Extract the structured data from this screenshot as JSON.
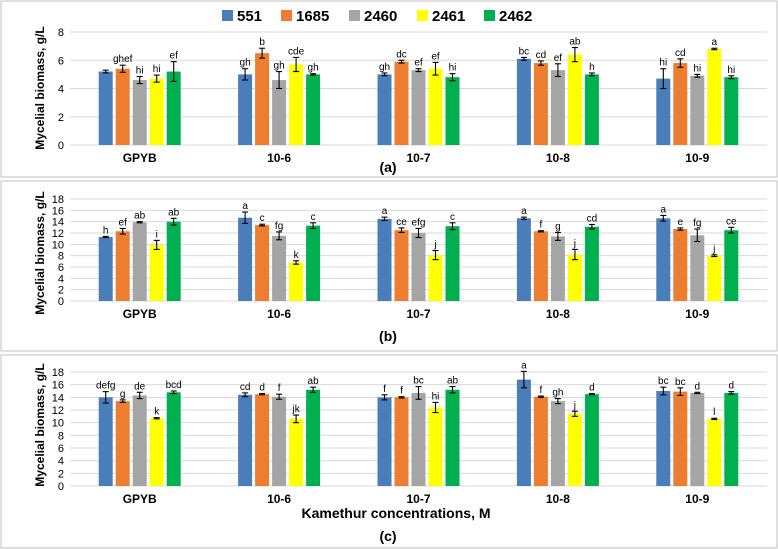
{
  "legend": {
    "series": [
      {
        "name": "551",
        "color": "#4a7ebb"
      },
      {
        "name": "1685",
        "color": "#ed7d31"
      },
      {
        "name": "2460",
        "color": "#a5a5a5"
      },
      {
        "name": "2461",
        "color": "#ffff00"
      },
      {
        "name": "2462",
        "color": "#00b050"
      }
    ]
  },
  "chart_data": [
    {
      "type": "bar",
      "panel_label": "(a)",
      "ylabel": "Mycelial biomass, g/L",
      "xlabel": "",
      "ylim": [
        0,
        8
      ],
      "yticks": [
        0,
        2,
        4,
        6,
        8
      ],
      "categories": [
        "GPYB",
        "10-6",
        "10-7",
        "10-8",
        "10-9"
      ],
      "series": [
        {
          "name": "551",
          "values": [
            5.2,
            5.0,
            5.0,
            6.1,
            4.7
          ],
          "errors": [
            0.1,
            0.4,
            0.1,
            0.1,
            0.7
          ],
          "labels": [
            "",
            "gh",
            "gh",
            "bc",
            "hi"
          ]
        },
        {
          "name": "1685",
          "values": [
            5.4,
            6.5,
            5.9,
            5.8,
            5.8
          ],
          "errors": [
            0.25,
            0.35,
            0.1,
            0.15,
            0.3
          ],
          "labels": [
            "ghef",
            "b",
            "dc",
            "cd",
            "cd"
          ]
        },
        {
          "name": "2460",
          "values": [
            4.6,
            4.6,
            5.3,
            5.3,
            4.9
          ],
          "errors": [
            0.25,
            0.6,
            0.1,
            0.45,
            0.1
          ],
          "labels": [
            "hi",
            "gh",
            "ef",
            "ef",
            "hi"
          ]
        },
        {
          "name": "2461",
          "values": [
            4.7,
            5.7,
            5.4,
            6.4,
            6.8
          ],
          "errors": [
            0.25,
            0.5,
            0.45,
            0.5,
            0.05
          ],
          "labels": [
            "hi",
            "cde",
            "ef",
            "ab",
            "a"
          ]
        },
        {
          "name": "2462",
          "values": [
            5.2,
            5.0,
            4.8,
            5.0,
            4.8
          ],
          "errors": [
            0.7,
            0.05,
            0.25,
            0.1,
            0.1
          ],
          "labels": [
            "ef",
            "gh",
            "hi",
            "h",
            "hi"
          ]
        }
      ]
    },
    {
      "type": "bar",
      "panel_label": "(b)",
      "ylabel": "Mycelial biomass, g/L",
      "xlabel": "",
      "ylim": [
        0,
        18
      ],
      "yticks": [
        0,
        2,
        4,
        6,
        8,
        10,
        12,
        14,
        16,
        18
      ],
      "categories": [
        "GPYB",
        "10-6",
        "10-7",
        "10-8",
        "10-9"
      ],
      "series": [
        {
          "name": "551",
          "values": [
            11.3,
            14.7,
            14.5,
            14.6,
            14.6
          ],
          "errors": [
            0.1,
            1.0,
            0.3,
            0.2,
            0.5
          ],
          "labels": [
            "h",
            "a",
            "a",
            "a",
            "a"
          ]
        },
        {
          "name": "1685",
          "values": [
            12.3,
            13.4,
            12.5,
            12.3,
            12.7
          ],
          "errors": [
            0.5,
            0.15,
            0.4,
            0.1,
            0.2
          ],
          "labels": [
            "ef",
            "c",
            "ce",
            "f",
            "e"
          ]
        },
        {
          "name": "2460",
          "values": [
            13.9,
            11.5,
            12.0,
            11.4,
            11.6
          ],
          "errors": [
            0.1,
            0.7,
            0.8,
            0.7,
            1.1
          ],
          "labels": [
            "ab",
            "fg",
            "efg",
            "g",
            "fg"
          ]
        },
        {
          "name": "2461",
          "values": [
            9.9,
            6.8,
            8.1,
            8.2,
            8.0
          ],
          "errors": [
            0.8,
            0.3,
            0.8,
            0.9,
            0.15
          ],
          "labels": [
            "i",
            "k",
            "j",
            "j",
            "j"
          ]
        },
        {
          "name": "2462",
          "values": [
            14.0,
            13.3,
            13.2,
            13.1,
            12.5
          ],
          "errors": [
            0.6,
            0.5,
            0.6,
            0.4,
            0.5
          ],
          "labels": [
            "ab",
            "c",
            "c",
            "cd",
            "ce"
          ]
        }
      ]
    },
    {
      "type": "bar",
      "panel_label": "(c)",
      "ylabel": "Mycelial biomass, g/L",
      "xlabel": "Kamethur concentrations, M",
      "ylim": [
        0,
        18
      ],
      "yticks": [
        0,
        2,
        4,
        6,
        8,
        10,
        12,
        14,
        16,
        18
      ],
      "categories": [
        "GPYB",
        "10-6",
        "10-7",
        "10-8",
        "10-9"
      ],
      "series": [
        {
          "name": "551",
          "values": [
            14.0,
            14.4,
            14.0,
            16.8,
            15.0
          ],
          "errors": [
            0.9,
            0.3,
            0.4,
            1.3,
            0.6
          ],
          "labels": [
            "defg",
            "cd",
            "f",
            "a",
            "bc"
          ]
        },
        {
          "name": "1685",
          "values": [
            13.4,
            14.5,
            14.0,
            14.1,
            14.9
          ],
          "errors": [
            0.2,
            0.1,
            0.1,
            0.1,
            0.6
          ],
          "labels": [
            "g",
            "d",
            "f",
            "f",
            "bc"
          ]
        },
        {
          "name": "2460",
          "values": [
            14.3,
            14.1,
            14.7,
            13.4,
            14.7
          ],
          "errors": [
            0.5,
            0.4,
            1.0,
            0.4,
            0.1
          ],
          "labels": [
            "de",
            "f",
            "bc",
            "gh",
            "d"
          ]
        },
        {
          "name": "2461",
          "values": [
            10.7,
            10.6,
            12.4,
            11.4,
            10.6
          ],
          "errors": [
            0.1,
            0.6,
            0.8,
            0.4,
            0.1
          ],
          "labels": [
            "k",
            "jk",
            "hi",
            "j",
            "l"
          ]
        },
        {
          "name": "2462",
          "values": [
            14.8,
            15.2,
            15.2,
            14.5,
            14.7
          ],
          "errors": [
            0.2,
            0.4,
            0.5,
            0.1,
            0.2
          ],
          "labels": [
            "bcd",
            "ab",
            "ab",
            "d",
            "d"
          ]
        }
      ]
    }
  ]
}
